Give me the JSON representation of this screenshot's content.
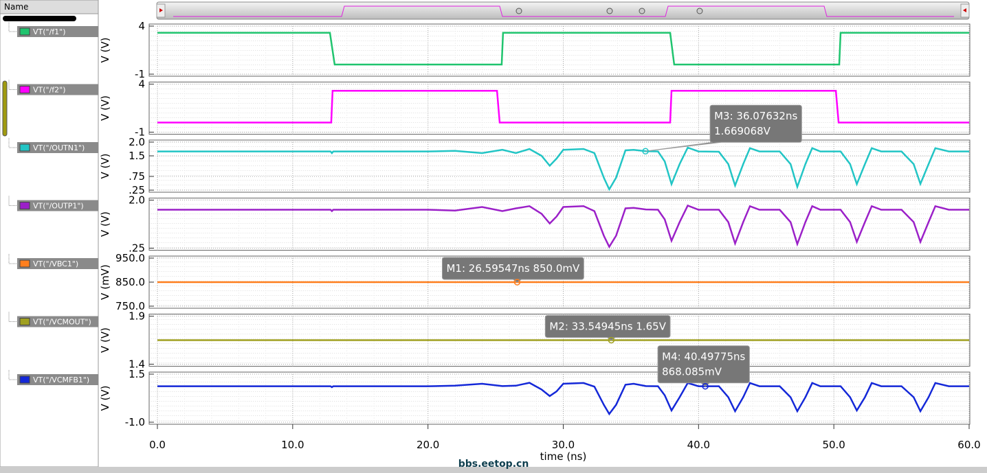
{
  "panel": {
    "header": "Name"
  },
  "watermark": "bbs.eetop.cn",
  "chart_data": [
    {
      "type": "line",
      "ylabel": "V (V)",
      "xlim": [
        0,
        60
      ],
      "ylim": [
        -1,
        4
      ],
      "yticks": [
        -1,
        4
      ],
      "grid": true,
      "x": [
        0,
        12.75,
        13.1,
        25.45,
        25.55,
        37.9,
        38.2,
        50.4,
        50.5,
        60
      ],
      "series": [
        {
          "name": "VT(\"/f1\")",
          "color": "#1fc46e",
          "values": [
            3.3,
            3.3,
            0,
            0,
            3.3,
            3.3,
            0,
            0,
            3.3,
            3.3
          ]
        }
      ]
    },
    {
      "type": "line",
      "ylabel": "V (V)",
      "xlim": [
        0,
        60
      ],
      "ylim": [
        -1,
        4
      ],
      "yticks": [
        -1,
        4
      ],
      "grid": true,
      "x": [
        0,
        12.85,
        12.95,
        25.1,
        25.3,
        37.9,
        38.0,
        50.15,
        50.35,
        60
      ],
      "series": [
        {
          "name": "VT(\"/f2\")",
          "color": "#ff00ff",
          "values": [
            0,
            0,
            3.3,
            3.3,
            0,
            0,
            3.3,
            3.3,
            0,
            0
          ]
        }
      ]
    },
    {
      "type": "line",
      "ylabel": "V (V)",
      "xlim": [
        0,
        60
      ],
      "ylim": [
        0.25,
        2.0
      ],
      "yticks": [
        {
          "value": 0.25,
          "label": ".25"
        },
        {
          "value": 0.75,
          "label": ".75"
        },
        1.5,
        {
          "value": 2,
          "label": "2.0"
        }
      ],
      "grid": true,
      "x": [
        0,
        12.8,
        12.9,
        13.0,
        20,
        22,
        24,
        25.5,
        26.5,
        27.5,
        28.4,
        29.0,
        29.5,
        30,
        31.5,
        32.3,
        33.0,
        33.4,
        33.9,
        34.6,
        35.2,
        36.1,
        37.0,
        37.5,
        38.0,
        38.6,
        39.2,
        40,
        41.5,
        42.2,
        42.7,
        43.3,
        43.8,
        44.5,
        46,
        46.8,
        47.3,
        47.9,
        48.4,
        49,
        50.5,
        51.2,
        51.7,
        52.3,
        52.8,
        53.5,
        55,
        55.9,
        56.4,
        57,
        57.5,
        58.5,
        60
      ],
      "series": [
        {
          "name": "VT(\"/OUTN1\")",
          "color": "#22c5c5",
          "values": [
            1.66,
            1.66,
            1.6,
            1.66,
            1.66,
            1.68,
            1.6,
            1.72,
            1.6,
            1.75,
            1.5,
            1.14,
            1.4,
            1.72,
            1.75,
            1.6,
            0.7,
            0.28,
            0.7,
            1.7,
            1.72,
            1.67,
            1.66,
            1.3,
            0.47,
            1.2,
            1.8,
            1.66,
            1.65,
            1.2,
            0.42,
            1.2,
            1.78,
            1.66,
            1.66,
            1.2,
            0.37,
            1.2,
            1.78,
            1.66,
            1.66,
            1.2,
            0.47,
            1.2,
            1.78,
            1.66,
            1.66,
            1.2,
            0.48,
            1.2,
            1.78,
            1.66,
            1.66
          ]
        }
      ],
      "markers": [
        {
          "label": [
            "M3: 36.07632ns",
            "1.669068V"
          ],
          "x": 36.07632,
          "y": 1.669068
        }
      ]
    },
    {
      "type": "line",
      "ylabel": "V (V)",
      "xlim": [
        0,
        60
      ],
      "ylim": [
        0.25,
        2.0
      ],
      "yticks": [
        {
          "value": 0.25,
          "label": ".25"
        },
        {
          "value": 2,
          "label": "2.0"
        }
      ],
      "grid": true,
      "x": [
        0,
        12.8,
        12.9,
        13.0,
        20,
        22,
        24,
        25.5,
        26.5,
        27.5,
        28.4,
        29.0,
        29.5,
        30,
        31.5,
        32.3,
        33.0,
        33.4,
        33.9,
        34.6,
        35.2,
        36.1,
        37.0,
        37.5,
        38.0,
        38.6,
        39.2,
        40,
        41.5,
        42.2,
        42.7,
        43.3,
        43.8,
        44.5,
        46,
        46.8,
        47.3,
        47.9,
        48.4,
        49,
        50.5,
        51.2,
        51.7,
        52.3,
        52.8,
        53.5,
        55,
        55.9,
        56.4,
        57,
        57.5,
        58.5,
        60
      ],
      "series": [
        {
          "name": "VT(\"/OUTP1\")",
          "color": "#9b20c8",
          "values": [
            1.65,
            1.65,
            1.6,
            1.65,
            1.65,
            1.62,
            1.75,
            1.6,
            1.7,
            1.78,
            1.5,
            1.15,
            1.4,
            1.75,
            1.78,
            1.6,
            0.7,
            0.3,
            0.7,
            1.7,
            1.72,
            1.66,
            1.65,
            1.3,
            0.52,
            1.2,
            1.8,
            1.65,
            1.65,
            1.2,
            0.42,
            1.2,
            1.78,
            1.65,
            1.65,
            1.2,
            0.4,
            1.2,
            1.78,
            1.65,
            1.65,
            1.2,
            0.48,
            1.2,
            1.78,
            1.65,
            1.65,
            1.2,
            0.48,
            1.2,
            1.78,
            1.65,
            1.65
          ]
        }
      ]
    },
    {
      "type": "line",
      "ylabel": "V (mV)",
      "xlim": [
        0,
        60
      ],
      "ylim": [
        750,
        950
      ],
      "yticks": [
        {
          "value": 750,
          "label": "750.0"
        },
        {
          "value": 850,
          "label": "850.0"
        },
        {
          "value": 950,
          "label": "950.0"
        }
      ],
      "grid": true,
      "x": [
        0,
        60
      ],
      "series": [
        {
          "name": "VT(\"/VBC1\")",
          "color": "#ff7f1e",
          "values": [
            850,
            850
          ]
        }
      ],
      "markers": [
        {
          "label": [
            "M1: 26.59547ns 850.0mV"
          ],
          "x": 26.59547,
          "y": 850
        }
      ]
    },
    {
      "type": "line",
      "ylabel": "V (V)",
      "xlim": [
        0,
        60
      ],
      "ylim": [
        1.4,
        1.9
      ],
      "yticks": [
        1.4,
        1.9
      ],
      "grid": true,
      "x": [
        0,
        60
      ],
      "series": [
        {
          "name": "VT(\"/VCMOUT\")",
          "color": "#a0a020",
          "values": [
            1.65,
            1.65
          ]
        }
      ],
      "markers": [
        {
          "label": [
            "M2: 33.54945ns 1.65V"
          ],
          "x": 33.54945,
          "y": 1.65
        }
      ]
    },
    {
      "type": "line",
      "ylabel": "V (V)",
      "xlabel": "time (ns)",
      "xlim": [
        0,
        60
      ],
      "ylim": [
        -1,
        1.5
      ],
      "yticks": [
        {
          "value": -1,
          "label": "-1.0"
        },
        1.5
      ],
      "grid": true,
      "xticks": [
        {
          "value": 0,
          "label": "0.0"
        },
        {
          "value": 10,
          "label": "10.0"
        },
        {
          "value": 20,
          "label": "20.0"
        },
        {
          "value": 30,
          "label": "30.0"
        },
        {
          "value": 40,
          "label": "40.0"
        },
        {
          "value": 50,
          "label": "50.0"
        },
        {
          "value": 60,
          "label": "60.0"
        }
      ],
      "x": [
        0,
        12.8,
        12.9,
        13.0,
        20,
        22,
        24,
        25.5,
        26.5,
        27.5,
        28.4,
        29.0,
        29.5,
        30,
        31.5,
        32.3,
        33.0,
        33.4,
        33.9,
        34.6,
        35.2,
        36.1,
        37.0,
        37.5,
        38.0,
        38.6,
        39.2,
        40,
        41.5,
        42.2,
        42.7,
        43.3,
        43.8,
        44.5,
        46,
        46.8,
        47.3,
        47.9,
        48.4,
        49,
        50.5,
        51.2,
        51.7,
        52.3,
        52.8,
        53.5,
        55,
        55.9,
        56.4,
        57,
        57.5,
        58.5,
        60
      ],
      "series": [
        {
          "name": "VT(\"/VCMFB1\")",
          "color": "#1428d8",
          "values": [
            0.87,
            0.87,
            0.82,
            0.87,
            0.87,
            0.9,
            1.0,
            0.88,
            0.9,
            1.05,
            0.7,
            0.36,
            0.6,
            1.0,
            1.04,
            0.85,
            -0.1,
            -0.57,
            -0.1,
            0.95,
            1.0,
            0.88,
            0.87,
            0.4,
            -0.39,
            0.3,
            1.04,
            0.87,
            0.87,
            0.3,
            -0.43,
            0.3,
            1.04,
            0.87,
            0.87,
            0.3,
            -0.43,
            0.3,
            1.04,
            0.87,
            0.87,
            0.3,
            -0.39,
            0.3,
            1.04,
            0.87,
            0.87,
            0.3,
            -0.43,
            0.3,
            1.04,
            0.87,
            0.87
          ]
        }
      ],
      "markers": [
        {
          "label": [
            "M4: 40.49775ns",
            "868.085mV"
          ],
          "x": 40.49775,
          "y": 0.868085
        }
      ]
    }
  ]
}
